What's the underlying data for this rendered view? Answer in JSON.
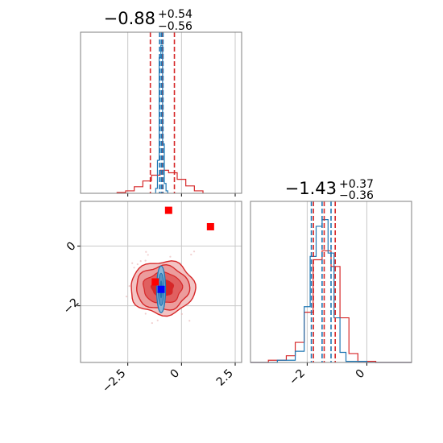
{
  "colors": {
    "red": "#d62728",
    "blue": "#1f77b4",
    "grid": "#c8c8c8",
    "axis": "#7f7f7f",
    "marker_red": "#ff0000",
    "marker_blue": "#0000ff"
  },
  "chart_data": [
    {
      "type": "histogram",
      "panel": "marginal-x",
      "title": {
        "value": "−0.88",
        "plus": "+0.54",
        "minus": "−0.56"
      },
      "xlim": [
        -4.7,
        2.8
      ],
      "x_ticks": [
        -2.5,
        0.0,
        2.5
      ],
      "grid": true,
      "series": [
        {
          "color": "red",
          "bins": [
            -3.0,
            -2.6,
            -2.2,
            -1.8,
            -1.4,
            -1.0,
            -0.6,
            -0.2,
            0.2,
            0.6,
            1.0
          ],
          "values": [
            1,
            3,
            8,
            15,
            22,
            28,
            25,
            17,
            9,
            3
          ]
        },
        {
          "color": "blue",
          "bins": [
            -1.2,
            -1.12,
            -1.04,
            -0.96,
            -0.88,
            -0.8,
            -0.72,
            -0.64
          ],
          "values": [
            6,
            40,
            165,
            180,
            60,
            12,
            3
          ]
        }
      ],
      "quantile_lines": [
        {
          "color": "red",
          "x": [
            -1.45,
            -0.88,
            -0.33
          ]
        },
        {
          "color": "blue",
          "x": [
            -1.02,
            -0.94,
            -0.86
          ]
        }
      ]
    },
    {
      "type": "contour-scatter",
      "panel": "joint",
      "xlim": [
        -4.7,
        2.8
      ],
      "ylim": [
        -3.9,
        1.5
      ],
      "x_ticks": [
        -2.5,
        0.0,
        2.5
      ],
      "y_ticks": [
        0,
        -2
      ],
      "grid": true,
      "red_contour_center": [
        -0.88,
        -1.4
      ],
      "blue_contour_center": [
        -0.95,
        -1.45
      ],
      "markers": [
        {
          "color": "marker_red",
          "x": -0.6,
          "y": 1.2
        },
        {
          "color": "marker_red",
          "x": 1.35,
          "y": 0.65
        },
        {
          "color": "marker_blue",
          "x": -0.95,
          "y": -1.45
        }
      ]
    },
    {
      "type": "histogram",
      "panel": "marginal-y",
      "title": {
        "value": "−1.43",
        "plus": "+0.37",
        "minus": "−0.36"
      },
      "xlim": [
        -3.9,
        1.5
      ],
      "x_ticks": [
        -2,
        0
      ],
      "grid": true,
      "series": [
        {
          "color": "red",
          "bins": [
            -3.9,
            -3.3,
            -2.7,
            -2.4,
            -2.1,
            -1.8,
            -1.5,
            -1.2,
            -0.9,
            -0.6,
            -0.3,
            0.3,
            1.5
          ],
          "values": [
            0,
            2,
            6,
            18,
            45,
            92,
            100,
            86,
            40,
            8,
            1,
            0
          ]
        },
        {
          "color": "blue",
          "bins": [
            -3.9,
            -3.0,
            -2.4,
            -2.1,
            -1.9,
            -1.7,
            -1.5,
            -1.3,
            -1.1,
            -0.9,
            -0.7,
            0.0,
            1.5
          ],
          "values": [
            0,
            2,
            10,
            50,
            95,
            122,
            128,
            98,
            40,
            9,
            1,
            0
          ]
        }
      ],
      "quantile_lines": [
        {
          "color": "red",
          "x": [
            -1.79,
            -1.43,
            -1.06
          ]
        },
        {
          "color": "blue",
          "x": [
            -1.86,
            -1.5,
            -1.2
          ]
        }
      ]
    }
  ]
}
